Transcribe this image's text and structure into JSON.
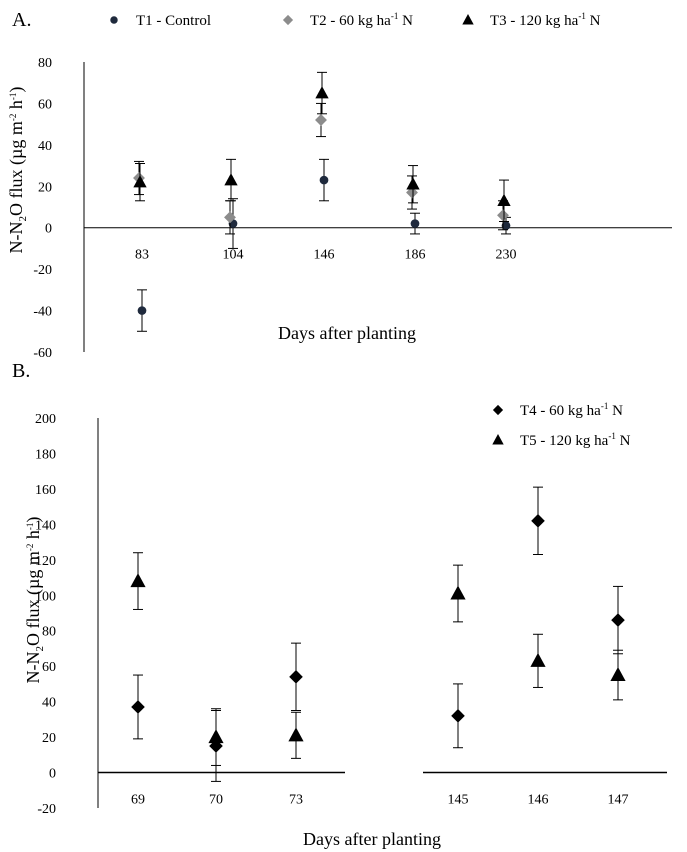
{
  "chart_data": [
    {
      "type": "scatter",
      "panel": "A.",
      "xlabel": "Days after planting",
      "ylabel_parts": [
        "N-N",
        "2",
        "O flux (µg m",
        "-2",
        " h",
        "-1",
        ")"
      ],
      "categories": [
        "83",
        "104",
        "146",
        "186",
        "230"
      ],
      "ylim": [
        -60,
        80
      ],
      "yticks": [
        "80",
        "60",
        "40",
        "20",
        "0",
        "-20",
        "-40",
        "-60"
      ],
      "legend_placement": "top",
      "series": [
        {
          "name": "T1 - Control",
          "label_parts": [
            "T1 - Control",
            "",
            ""
          ],
          "marker": "circle",
          "color": "#1f2a3d",
          "values": [
            -40,
            2,
            23,
            2,
            1
          ],
          "errors": [
            10,
            12,
            10,
            5,
            4
          ]
        },
        {
          "name": "T2 - 60 kg ha-1 N",
          "label_parts": [
            "T2  -  60 kg ha",
            "-1",
            " N"
          ],
          "marker": "diamond",
          "color": "#8c8c8c",
          "values": [
            24,
            5,
            52,
            17,
            6
          ],
          "errors": [
            8,
            8,
            8,
            8,
            7
          ]
        },
        {
          "name": "T3 - 120 kg ha-1 N",
          "label_parts": [
            "T3  -  120 kg ha",
            "-1",
            " N"
          ],
          "marker": "triangle",
          "color": "#000000",
          "values": [
            22,
            23,
            65,
            21,
            13
          ],
          "errors": [
            9,
            10,
            10,
            9,
            10
          ]
        }
      ]
    },
    {
      "type": "scatter",
      "panel": "B.",
      "xlabel": "Days after planting",
      "ylabel_parts": [
        "N-N",
        "2",
        "O flux (µg m",
        "-2",
        " h",
        "-1",
        ")"
      ],
      "categories": [
        "69",
        "70",
        "73",
        "145",
        "146",
        "147"
      ],
      "ylim": [
        -20,
        200
      ],
      "yticks": [
        "200",
        "180",
        "160",
        "140",
        "120",
        "100",
        "80",
        "60",
        "40",
        "20",
        "0",
        "-20"
      ],
      "legend_placement": "top-right",
      "series": [
        {
          "name": "T4 - 60 kg ha-1 N",
          "label_parts": [
            "T4  -  60 kg ha",
            "-1",
            " N"
          ],
          "marker": "diamond",
          "color": "#000000",
          "values": [
            37,
            15,
            54,
            32,
            142,
            86
          ],
          "errors": [
            18,
            20,
            19,
            18,
            19,
            19
          ]
        },
        {
          "name": "T5 - 120 kg ha-1 N",
          "label_parts": [
            "T5  -  120 kg ha",
            "-1",
            " N"
          ],
          "marker": "triangle",
          "color": "#000000",
          "values": [
            108,
            20,
            21,
            101,
            63,
            55
          ],
          "errors": [
            16,
            16,
            13,
            16,
            15,
            14
          ]
        }
      ]
    }
  ]
}
